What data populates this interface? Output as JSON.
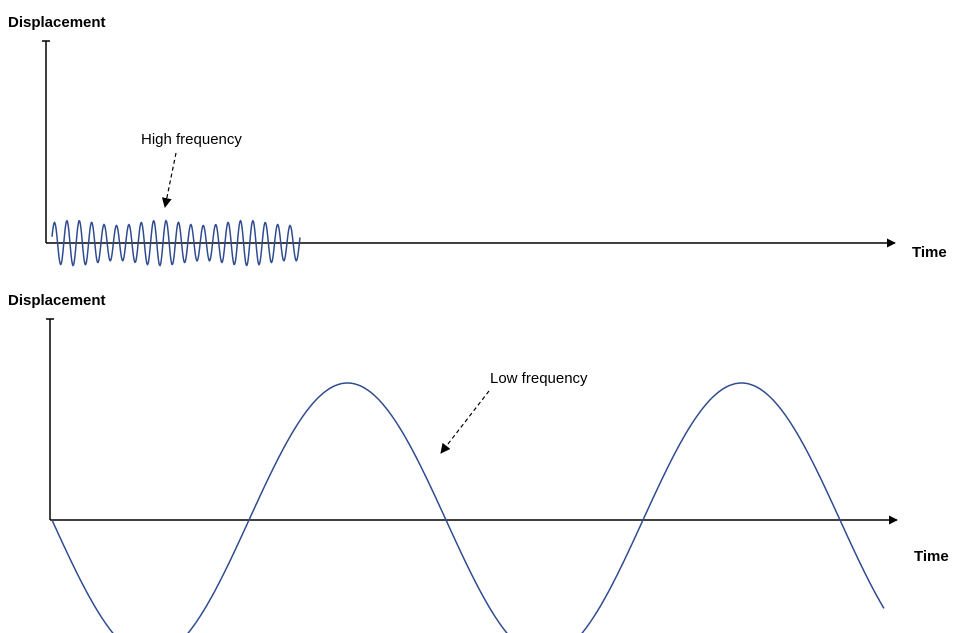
{
  "panels": [
    {
      "y_label": "Displacement",
      "x_label": "Time",
      "annotation": "High frequency"
    },
    {
      "y_label": "Displacement",
      "x_label": "Time",
      "annotation": "Low frequency"
    }
  ],
  "colors": {
    "wave": "#2f4b8f",
    "axis": "#000000"
  }
}
